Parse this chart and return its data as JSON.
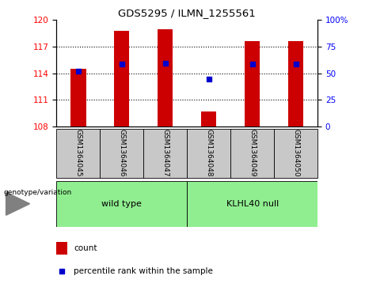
{
  "title": "GDS5295 / ILMN_1255561",
  "samples": [
    "GSM1364045",
    "GSM1364046",
    "GSM1364047",
    "GSM1364048",
    "GSM1364049",
    "GSM1364050"
  ],
  "bar_bottom": 108,
  "count_values": [
    114.5,
    118.8,
    119.0,
    109.7,
    117.6,
    117.6
  ],
  "percentile_values": [
    114.2,
    115.05,
    115.1,
    113.35,
    115.05,
    115.05
  ],
  "ylim_left": [
    108,
    120
  ],
  "yticks_left": [
    108,
    111,
    114,
    117,
    120
  ],
  "ylim_right": [
    0,
    100
  ],
  "yticks_right": [
    0,
    25,
    50,
    75,
    100
  ],
  "bar_color": "#cc0000",
  "dot_color": "#0000cc",
  "bar_width": 0.35,
  "sample_bg": "#c8c8c8",
  "group1_color": "#90EE90",
  "group2_color": "#90EE90",
  "legend_count_color": "#cc0000",
  "legend_dot_color": "#0000cc",
  "geno_label": "genotype/variation"
}
